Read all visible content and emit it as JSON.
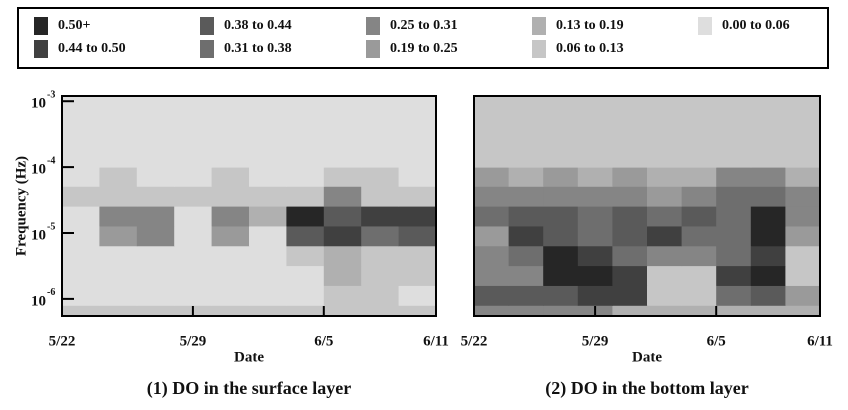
{
  "legend": {
    "items": [
      {
        "label": "0.50+",
        "min": 0.5,
        "color": "#262626"
      },
      {
        "label": "0.44 to 0.50",
        "min": 0.44,
        "color": "#404040"
      },
      {
        "label": "0.38 to 0.44",
        "min": 0.38,
        "color": "#5a5a5a"
      },
      {
        "label": "0.31 to 0.38",
        "min": 0.31,
        "color": "#6e6e6e"
      },
      {
        "label": "0.25 to 0.31",
        "min": 0.25,
        "color": "#858585"
      },
      {
        "label": "0.19 to 0.25",
        "min": 0.19,
        "color": "#9a9a9a"
      },
      {
        "label": "0.13 to 0.19",
        "min": 0.13,
        "color": "#b0b0b0"
      },
      {
        "label": "0.06 to 0.13",
        "min": 0.06,
        "color": "#c6c6c6"
      },
      {
        "label": "0.00 to 0.06",
        "min": 0.0,
        "color": "#dedede"
      }
    ]
  },
  "chart_data": [
    {
      "type": "heatmap",
      "title": "(1) DO in the surface layer",
      "xlabel": "Date",
      "ylabel": "Frequency (Hz)",
      "xlim": [
        0,
        20
      ],
      "xticks": [
        {
          "value": 0,
          "label": "5/22"
        },
        {
          "value": 7,
          "label": "5/29"
        },
        {
          "value": 14,
          "label": "6/5"
        },
        {
          "value": 20,
          "label": "6/11"
        }
      ],
      "ylim": [
        5.5e-07,
        0.0012
      ],
      "log_y": true,
      "yticks": [
        {
          "value": 0.001,
          "label": "10",
          "exponent": "-3"
        },
        {
          "value": 0.0001,
          "label": "10",
          "exponent": "-4"
        },
        {
          "value": 1e-05,
          "label": "10",
          "exponent": "-5"
        },
        {
          "value": 1e-06,
          "label": "10",
          "exponent": "-6"
        }
      ],
      "xbins": [
        0,
        2,
        4,
        6,
        8,
        10,
        12,
        14,
        16,
        18,
        20
      ],
      "ybins": [
        5.5e-07,
        8e-07,
        1.6e-06,
        3.2e-06,
        6.4e-06,
        1.28e-05,
        2.56e-05,
        5.12e-05,
        0.0001,
        0.0012
      ],
      "values": [
        [
          0.06,
          0.06,
          0.06,
          0.06,
          0.06,
          0.06,
          0.06,
          0.08,
          0.12,
          0.12
        ],
        [
          0.05,
          0.05,
          0.05,
          0.05,
          0.05,
          0.05,
          0.05,
          0.12,
          0.08,
          0.05
        ],
        [
          0.05,
          0.05,
          0.05,
          0.05,
          0.05,
          0.05,
          0.05,
          0.14,
          0.1,
          0.08
        ],
        [
          0.05,
          0.05,
          0.05,
          0.05,
          0.05,
          0.05,
          0.1,
          0.16,
          0.1,
          0.1
        ],
        [
          0.05,
          0.2,
          0.25,
          0.05,
          0.2,
          0.05,
          0.4,
          0.45,
          0.35,
          0.4
        ],
        [
          0.05,
          0.3,
          0.28,
          0.05,
          0.25,
          0.15,
          0.5,
          0.4,
          0.45,
          0.45
        ],
        [
          0.08,
          0.06,
          0.06,
          0.08,
          0.06,
          0.06,
          0.08,
          0.3,
          0.1,
          0.06
        ],
        [
          0.05,
          0.06,
          0.05,
          0.05,
          0.06,
          0.05,
          0.05,
          0.08,
          0.06,
          0.05
        ],
        [
          0.03,
          0.03,
          0.03,
          0.03,
          0.03,
          0.03,
          0.03,
          0.03,
          0.03,
          0.03
        ]
      ]
    },
    {
      "type": "heatmap",
      "title": "(2) DO in the bottom layer",
      "xlabel": "Date",
      "xlim": [
        0,
        20
      ],
      "xticks": [
        {
          "value": 0,
          "label": "5/22"
        },
        {
          "value": 7,
          "label": "5/29"
        },
        {
          "value": 14,
          "label": "6/5"
        },
        {
          "value": 20,
          "label": "6/11"
        }
      ],
      "ylim": [
        5.5e-07,
        0.0012
      ],
      "log_y": true,
      "xbins": [
        0,
        2,
        4,
        6,
        8,
        10,
        12,
        14,
        16,
        18,
        20
      ],
      "ybins": [
        5.5e-07,
        8e-07,
        1.6e-06,
        3.2e-06,
        6.4e-06,
        1.28e-05,
        2.56e-05,
        5.12e-05,
        0.0001,
        0.0012
      ],
      "values": [
        [
          0.3,
          0.3,
          0.3,
          0.3,
          0.16,
          0.16,
          0.16,
          0.16,
          0.16,
          0.16
        ],
        [
          0.42,
          0.42,
          0.42,
          0.45,
          0.45,
          0.1,
          0.1,
          0.35,
          0.4,
          0.2
        ],
        [
          0.3,
          0.3,
          0.5,
          0.5,
          0.45,
          0.08,
          0.1,
          0.45,
          0.5,
          0.1
        ],
        [
          0.3,
          0.35,
          0.5,
          0.45,
          0.35,
          0.3,
          0.3,
          0.35,
          0.45,
          0.1
        ],
        [
          0.2,
          0.45,
          0.4,
          0.35,
          0.4,
          0.45,
          0.35,
          0.35,
          0.5,
          0.2
        ],
        [
          0.35,
          0.4,
          0.4,
          0.35,
          0.4,
          0.35,
          0.4,
          0.35,
          0.5,
          0.3
        ],
        [
          0.3,
          0.25,
          0.3,
          0.25,
          0.3,
          0.2,
          0.25,
          0.35,
          0.35,
          0.25
        ],
        [
          0.2,
          0.15,
          0.2,
          0.15,
          0.2,
          0.15,
          0.15,
          0.25,
          0.3,
          0.15
        ],
        [
          0.1,
          0.08,
          0.1,
          0.08,
          0.1,
          0.08,
          0.08,
          0.12,
          0.12,
          0.08
        ]
      ]
    }
  ]
}
